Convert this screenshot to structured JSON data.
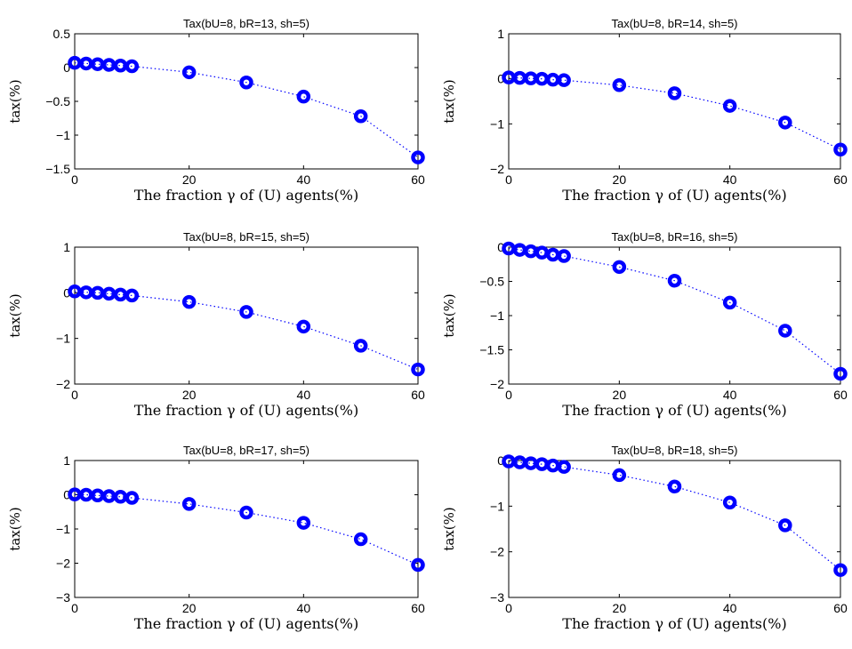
{
  "chart_data": [
    {
      "type": "line",
      "title": "Tax(bU=8, bR=13, sh=5)",
      "xlabel": "The fraction γ of (U) agents(%)",
      "ylabel": "tax(%)",
      "xlim": [
        0,
        60
      ],
      "ylim": [
        -1.5,
        0.5
      ],
      "xticks": [
        0,
        20,
        40,
        60
      ],
      "yticks": [
        0.5,
        0,
        -0.5,
        -1,
        -1.5
      ],
      "ytick_labels": [
        "0.5",
        "0",
        "−0.5",
        "−1",
        "−1.5"
      ],
      "x": [
        0,
        2,
        4,
        6,
        8,
        10,
        20,
        30,
        40,
        50,
        60
      ],
      "y": [
        0.07,
        0.06,
        0.05,
        0.04,
        0.03,
        0.02,
        -0.07,
        -0.22,
        -0.43,
        -0.72,
        -1.33
      ],
      "grid": false,
      "color": "#0000ff"
    },
    {
      "type": "line",
      "title": "Tax(bU=8, bR=14, sh=5)",
      "xlabel": "The fraction γ of (U) agents(%)",
      "ylabel": "tax(%)",
      "xlim": [
        0,
        60
      ],
      "ylim": [
        -2,
        1
      ],
      "xticks": [
        0,
        20,
        40,
        60
      ],
      "yticks": [
        1,
        0,
        -1,
        -2
      ],
      "ytick_labels": [
        "1",
        "0",
        "−1",
        "−2"
      ],
      "x": [
        0,
        2,
        4,
        6,
        8,
        10,
        20,
        30,
        40,
        50,
        60
      ],
      "y": [
        0.03,
        0.02,
        0.01,
        0.0,
        -0.02,
        -0.03,
        -0.14,
        -0.32,
        -0.6,
        -0.97,
        -1.57
      ],
      "grid": false,
      "color": "#0000ff"
    },
    {
      "type": "line",
      "title": "Tax(bU=8, bR=15, sh=5)",
      "xlabel": "The fraction γ of (U) agents(%)",
      "ylabel": "tax(%)",
      "xlim": [
        0,
        60
      ],
      "ylim": [
        -2,
        1
      ],
      "xticks": [
        0,
        20,
        40,
        60
      ],
      "yticks": [
        1,
        0,
        -1,
        -2
      ],
      "ytick_labels": [
        "1",
        "0",
        "−1",
        "−2"
      ],
      "x": [
        0,
        2,
        4,
        6,
        8,
        10,
        20,
        30,
        40,
        50,
        60
      ],
      "y": [
        0.03,
        0.01,
        0.0,
        -0.02,
        -0.04,
        -0.06,
        -0.2,
        -0.42,
        -0.74,
        -1.16,
        -1.68
      ],
      "grid": false,
      "color": "#0000ff"
    },
    {
      "type": "line",
      "title": "Tax(bU=8, bR=16, sh=5)",
      "xlabel": "The fraction γ of (U) agents(%)",
      "ylabel": "tax(%)",
      "xlim": [
        0,
        60
      ],
      "ylim": [
        -2,
        0
      ],
      "xticks": [
        0,
        20,
        40,
        60
      ],
      "yticks": [
        0,
        -0.5,
        -1,
        -1.5,
        -2
      ],
      "ytick_labels": [
        "0",
        "−0.5",
        "−1",
        "−1.5",
        "−2"
      ],
      "x": [
        0,
        2,
        4,
        6,
        8,
        10,
        20,
        30,
        40,
        50,
        60
      ],
      "y": [
        -0.02,
        -0.04,
        -0.06,
        -0.08,
        -0.11,
        -0.13,
        -0.29,
        -0.49,
        -0.81,
        -1.22,
        -1.85
      ],
      "grid": false,
      "color": "#0000ff"
    },
    {
      "type": "line",
      "title": "Tax(bU=8, bR=17, sh=5)",
      "xlabel": "The fraction γ of (U) agents(%)",
      "ylabel": "tax(%)",
      "xlim": [
        0,
        60
      ],
      "ylim": [
        -3,
        1
      ],
      "xticks": [
        0,
        20,
        40,
        60
      ],
      "yticks": [
        1,
        0,
        -1,
        -2,
        -3
      ],
      "ytick_labels": [
        "1",
        "0",
        "−1",
        "−2",
        "−3"
      ],
      "x": [
        0,
        2,
        4,
        6,
        8,
        10,
        20,
        30,
        40,
        50,
        60
      ],
      "y": [
        0.01,
        0.0,
        -0.02,
        -0.04,
        -0.06,
        -0.09,
        -0.27,
        -0.52,
        -0.82,
        -1.3,
        -2.05
      ],
      "grid": false,
      "color": "#0000ff"
    },
    {
      "type": "line",
      "title": "Tax(bU=8, bR=18, sh=5)",
      "xlabel": "The fraction γ of (U) agents(%)",
      "ylabel": "tax(%)",
      "xlim": [
        0,
        60
      ],
      "ylim": [
        -3,
        0
      ],
      "xticks": [
        0,
        20,
        40,
        60
      ],
      "yticks": [
        0,
        -1,
        -2,
        -3
      ],
      "ytick_labels": [
        "0",
        "−1",
        "−2",
        "−3"
      ],
      "x": [
        0,
        2,
        4,
        6,
        8,
        10,
        20,
        30,
        40,
        50,
        60
      ],
      "y": [
        -0.02,
        -0.04,
        -0.06,
        -0.08,
        -0.11,
        -0.14,
        -0.32,
        -0.57,
        -0.92,
        -1.42,
        -2.4
      ],
      "grid": false,
      "color": "#0000ff"
    }
  ]
}
